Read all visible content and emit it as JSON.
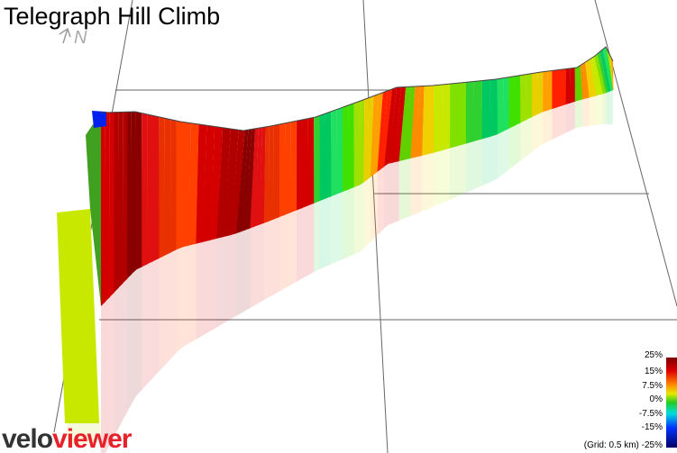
{
  "title": "Telegraph Hill Climb",
  "north": "N",
  "logo": {
    "velo": "velo",
    "viewer": "viewer"
  },
  "legend": {
    "labels": [
      "25%",
      "15%",
      "7.5%",
      "0%",
      "-7.5%",
      "-15%"
    ],
    "grid_note": "(Grid: 0.5 km) -25%"
  }
}
